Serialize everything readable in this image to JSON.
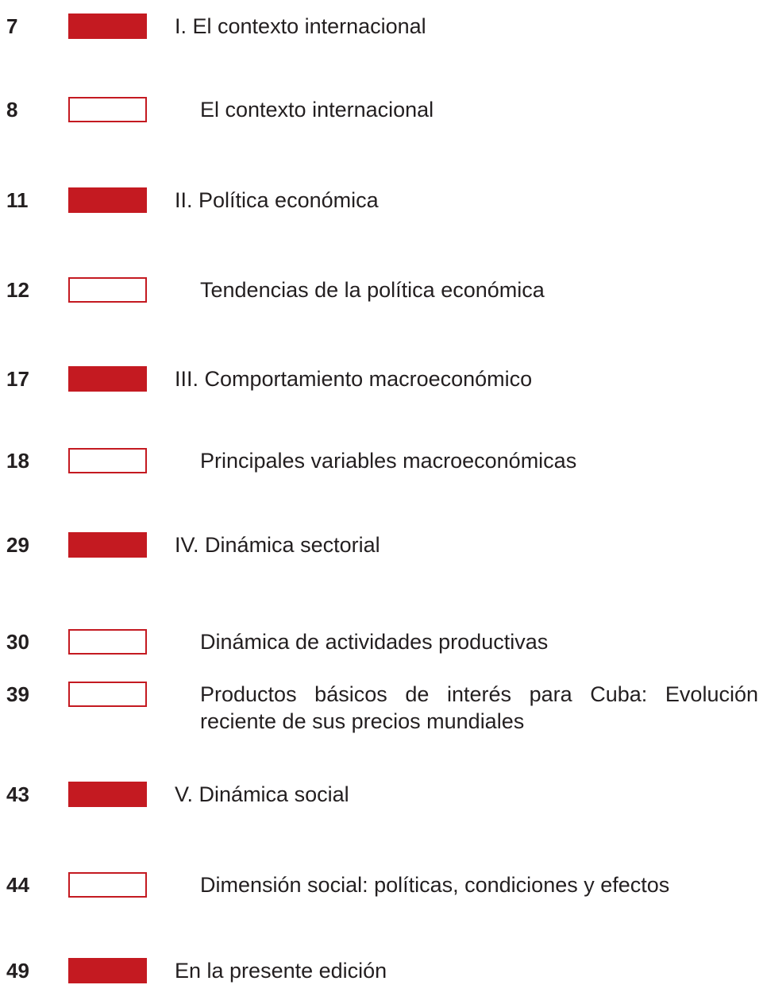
{
  "toc": {
    "color": "#c41a21",
    "entries": [
      {
        "page": "7",
        "title": "I. El contexto internacional",
        "filled": true
      },
      {
        "page": "8",
        "title": "El contexto internacional",
        "filled": false
      },
      {
        "page": "11",
        "title": "II. Política económica",
        "filled": true
      },
      {
        "page": "12",
        "title": "Tendencias de la política económica",
        "filled": false
      },
      {
        "page": "17",
        "title": "III. Comportamiento macroeconómico",
        "filled": true
      },
      {
        "page": "18",
        "title": "Principales variables macroeconómicas",
        "filled": false
      },
      {
        "page": "29",
        "title": "IV. Dinámica sectorial",
        "filled": true
      },
      {
        "page": "30",
        "title": "Dinámica de actividades productivas",
        "filled": false
      },
      {
        "page": "39",
        "title": "Productos básicos de interés para Cuba: Evolución reciente de sus precios mundiales",
        "filled": false
      },
      {
        "page": "43",
        "title": "V. Dinámica social",
        "filled": true
      },
      {
        "page": "44",
        "title": "Dimensión social: políticas, condiciones y efectos",
        "filled": false
      },
      {
        "page": "49",
        "title": "En la presente edición",
        "filled": true
      }
    ]
  }
}
